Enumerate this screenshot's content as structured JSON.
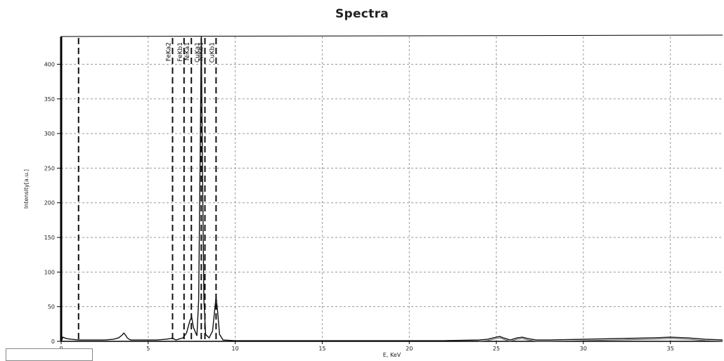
{
  "chart_data": {
    "type": "line",
    "title": "Spectra",
    "xlabel": "E, KeV",
    "ylabel": "Intensity[a.u.]",
    "xlim": [
      0,
      38
    ],
    "ylim": [
      0,
      440
    ],
    "xticks": [
      0,
      5,
      10,
      15,
      20,
      25,
      30,
      35
    ],
    "yticks": [
      0,
      50,
      100,
      150,
      200,
      250,
      300,
      350,
      400
    ],
    "grid": true,
    "series": [
      {
        "x": [
          0,
          0.1,
          0.3,
          0.6,
          1.0,
          1.5,
          2.0,
          2.5,
          3.0,
          3.3,
          3.5,
          3.6,
          3.7,
          3.8,
          3.9,
          4.0,
          4.5,
          5.0,
          5.5,
          6.0,
          6.3,
          6.4,
          6.5,
          6.6,
          7.0,
          7.2,
          7.4,
          7.5,
          7.6,
          7.8,
          7.9,
          8.0,
          8.05,
          8.1,
          8.2,
          8.3,
          8.5,
          8.7,
          8.8,
          8.9,
          9.0,
          9.1,
          9.3,
          10.0,
          12.0,
          15.0,
          18.0,
          20.0,
          22.0,
          24.0,
          24.5,
          25.0,
          25.2,
          25.4,
          25.8,
          26.2,
          26.5,
          26.8,
          27.3,
          28.0,
          30.0,
          32.0,
          34.0,
          35.0,
          36.0,
          37.0,
          38.0
        ],
        "y": [
          0,
          6,
          4,
          3,
          2,
          2,
          2,
          2,
          3,
          5,
          9,
          12,
          9,
          5,
          3,
          2,
          2,
          2,
          2,
          3,
          4,
          5,
          3,
          2,
          5,
          12,
          30,
          35,
          20,
          8,
          60,
          300,
          440,
          300,
          60,
          10,
          5,
          15,
          40,
          65,
          40,
          10,
          2,
          1,
          1,
          1,
          1,
          1,
          1,
          2,
          3,
          6,
          7,
          5,
          2,
          5,
          6,
          4,
          2,
          2,
          3,
          4,
          5,
          6,
          5,
          3,
          2
        ]
      }
    ],
    "element_lines": [
      {
        "x": 1.0,
        "label": ""
      },
      {
        "x": 6.4,
        "label": "FeKa2"
      },
      {
        "x": 7.06,
        "label": "FeKb1"
      },
      {
        "x": 7.48,
        "label": "NiKa1"
      },
      {
        "x": 8.05,
        "label": "CuKa1"
      },
      {
        "x": 8.26,
        "label": "NiKb1"
      },
      {
        "x": 8.9,
        "label": "CuKb1"
      }
    ],
    "line_labels": [
      "FeKa2",
      "FeKb1",
      "NiKa1",
      "CuKa1",
      "NiKb1",
      "CuKb1"
    ]
  }
}
